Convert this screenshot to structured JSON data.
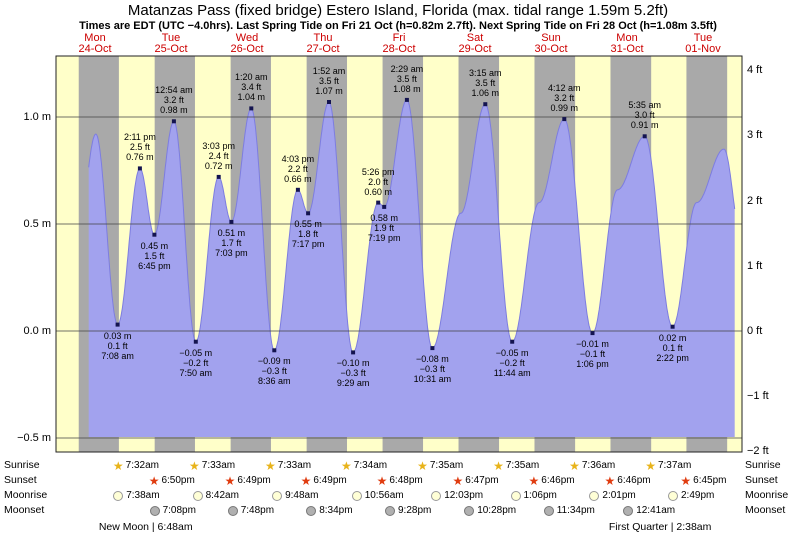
{
  "header": {
    "title": "Matanzas Pass (fixed bridge) Estero Island, Florida (max. tidal range 1.59m 5.2ft)",
    "subtitle": "Times are EDT (UTC −4.0hrs). Last Spring Tide on Fri 21 Oct (h=0.82m 2.7ft). Next Spring Tide on Fri 28 Oct (h=1.08m 3.5ft)"
  },
  "colors": {
    "day_band": "#ffffc9",
    "night_band": "#a9a9a9",
    "tide_fill": "#a2a2ee",
    "tide_stroke": "#7d7de0",
    "day_label": "#cc0000",
    "gridline": "#444444",
    "dot": "#141450",
    "sunrise_star": "#e8b31a",
    "sunset_star": "#e03c10",
    "moonrise_fill": "#ffffd6",
    "moonrise_border": "#999999",
    "moonset_fill": "#b0b0b0",
    "moonset_border": "#777777"
  },
  "days": [
    {
      "name": "Mon",
      "date": "24-Oct",
      "t": 24
    },
    {
      "name": "Tue",
      "date": "25-Oct",
      "t": 48
    },
    {
      "name": "Wed",
      "date": "26-Oct",
      "t": 72
    },
    {
      "name": "Thu",
      "date": "27-Oct",
      "t": 96
    },
    {
      "name": "Fri",
      "date": "28-Oct",
      "t": 120
    },
    {
      "name": "Sat",
      "date": "29-Oct",
      "t": 144
    },
    {
      "name": "Sun",
      "date": "30-Oct",
      "t": 168
    },
    {
      "name": "Mon",
      "date": "31-Oct",
      "t": 192
    },
    {
      "name": "Tue",
      "date": "01-Nov",
      "t": 216
    }
  ],
  "axes": {
    "left": [
      {
        "label": "1.0 m",
        "m": 1.0
      },
      {
        "label": "0.5 m",
        "m": 0.5
      },
      {
        "label": "0.0 m",
        "m": 0.0
      },
      {
        "label": "−0.5 m",
        "m": -0.5
      }
    ],
    "right": [
      {
        "label": "4 ft",
        "ft": 4
      },
      {
        "label": "3 ft",
        "ft": 3
      },
      {
        "label": "2 ft",
        "ft": 2
      },
      {
        "label": "1 ft",
        "ft": 1
      },
      {
        "label": "0 ft",
        "ft": 0
      },
      {
        "label": "−1 ft",
        "ft": -1
      },
      {
        "label": "−2 ft",
        "ft": -2
      }
    ]
  },
  "chart_data": {
    "type": "area",
    "title": "Tide height curve, Matanzas Pass (fixed bridge), Mon 24-Oct to Tue 01-Nov",
    "ylabel_left": "m",
    "ylabel_right": "ft",
    "y_range_m": [
      -0.58,
      1.285
    ],
    "time_axis_hours": [
      11.67,
      228.3
    ],
    "data_start_t": 22.0,
    "data_end_t": 226.0,
    "daylight_spans": [
      [
        11.67,
        18.85
      ],
      [
        31.53,
        42.83
      ],
      [
        55.55,
        66.82
      ],
      [
        79.55,
        90.82
      ],
      [
        103.57,
        114.8
      ],
      [
        127.58,
        138.78
      ],
      [
        151.58,
        162.77
      ],
      [
        175.6,
        186.77
      ],
      [
        199.62,
        210.75
      ],
      [
        223.62,
        228.3
      ]
    ],
    "tide_events": [
      {
        "t": 18.0,
        "h": 0.38,
        "hidden": true
      },
      {
        "t": 24.25,
        "h": 0.92,
        "hidden": true
      },
      {
        "t": 31.13,
        "h": 0.03,
        "type": "low",
        "lines": [
          "0.03 m",
          "0.1 ft",
          "7:08 am"
        ]
      },
      {
        "t": 38.18,
        "h": 0.76,
        "type": "high",
        "lines": [
          "2:11 pm",
          "2.5 ft",
          "0.76 m"
        ]
      },
      {
        "t": 42.75,
        "h": 0.45,
        "type": "low",
        "lines": [
          "0.45 m",
          "1.5 ft",
          "6:45 pm"
        ]
      },
      {
        "t": 48.9,
        "h": 0.98,
        "type": "high",
        "lines": [
          "12:54 am",
          "3.2 ft",
          "0.98 m"
        ]
      },
      {
        "t": 55.83,
        "h": -0.05,
        "type": "low",
        "lines": [
          "−0.05 m",
          "−0.2 ft",
          "7:50 am"
        ]
      },
      {
        "t": 63.05,
        "h": 0.72,
        "type": "high",
        "lines": [
          "3:03 pm",
          "2.4 ft",
          "0.72 m"
        ]
      },
      {
        "t": 67.05,
        "h": 0.51,
        "type": "low",
        "lines": [
          "0.51 m",
          "1.7 ft",
          "7:03 pm"
        ]
      },
      {
        "t": 73.33,
        "h": 1.04,
        "type": "high",
        "lines": [
          "1:20 am",
          "3.4 ft",
          "1.04 m"
        ]
      },
      {
        "t": 80.6,
        "h": -0.09,
        "type": "low",
        "lines": [
          "−0.09 m",
          "−0.3 ft",
          "8:36 am"
        ]
      },
      {
        "t": 88.05,
        "h": 0.66,
        "type": "high",
        "lines": [
          "4:03 pm",
          "2.2 ft",
          "0.66 m"
        ]
      },
      {
        "t": 91.28,
        "h": 0.55,
        "type": "low",
        "lines": [
          "0.55 m",
          "1.8 ft",
          "7:17 pm"
        ]
      },
      {
        "t": 97.87,
        "h": 1.07,
        "type": "high",
        "lines": [
          "1:52 am",
          "3.5 ft",
          "1.07 m"
        ]
      },
      {
        "t": 105.48,
        "h": -0.1,
        "type": "low",
        "lines": [
          "−0.10 m",
          "−0.3 ft",
          "9:29 am"
        ]
      },
      {
        "t": 113.43,
        "h": 0.6,
        "type": "high",
        "lines": [
          "5:26 pm",
          "2.0 ft",
          "0.60 m"
        ]
      },
      {
        "t": 115.32,
        "h": 0.58,
        "type": "low",
        "lines": [
          "0.58 m",
          "1.9 ft",
          "7:19 pm"
        ]
      },
      {
        "t": 122.48,
        "h": 1.08,
        "type": "high",
        "lines": [
          "2:29 am",
          "3.5 ft",
          "1.08 m"
        ]
      },
      {
        "t": 130.52,
        "h": -0.08,
        "type": "low",
        "lines": [
          "−0.08 m",
          "−0.3 ft",
          "10:31 am"
        ]
      },
      {
        "t": 139.5,
        "h": 0.55,
        "hidden": true
      },
      {
        "t": 147.25,
        "h": 1.06,
        "type": "high",
        "lines": [
          "3:15 am",
          "3.5 ft",
          "1.06 m"
        ]
      },
      {
        "t": 155.73,
        "h": -0.05,
        "type": "low",
        "lines": [
          "−0.05 m",
          "−0.2 ft",
          "11:44 am"
        ]
      },
      {
        "t": 164.25,
        "h": 0.6,
        "hidden": true
      },
      {
        "t": 172.2,
        "h": 0.99,
        "type": "high",
        "lines": [
          "4:12 am",
          "3.2 ft",
          "0.99 m"
        ]
      },
      {
        "t": 181.1,
        "h": -0.01,
        "type": "low",
        "lines": [
          "−0.01 m",
          "−0.1 ft",
          "1:06 pm"
        ]
      },
      {
        "t": 189.0,
        "h": 0.66,
        "hidden": true
      },
      {
        "t": 197.58,
        "h": 0.91,
        "type": "high",
        "lines": [
          "5:35 am",
          "3.0 ft",
          "0.91 m"
        ]
      },
      {
        "t": 206.37,
        "h": 0.02,
        "type": "low",
        "lines": [
          "0.02 m",
          "0.1 ft",
          "2:22 pm"
        ]
      },
      {
        "t": 214.0,
        "h": 0.6,
        "hidden": true
      },
      {
        "t": 222.58,
        "h": 0.85,
        "hidden": true
      },
      {
        "t": 228.3,
        "h": 0.42,
        "hidden": true
      }
    ]
  },
  "almanac": {
    "rows": [
      {
        "key": "sunrise",
        "label": "Sunrise",
        "icon": "sunrise-star-icon",
        "entries": [
          {
            "t": 31.53,
            "time": "7:32am"
          },
          {
            "t": 55.55,
            "time": "7:33am"
          },
          {
            "t": 79.55,
            "time": "7:33am"
          },
          {
            "t": 103.57,
            "time": "7:34am"
          },
          {
            "t": 127.58,
            "time": "7:35am"
          },
          {
            "t": 151.58,
            "time": "7:35am"
          },
          {
            "t": 175.6,
            "time": "7:36am"
          },
          {
            "t": 199.62,
            "time": "7:37am"
          }
        ]
      },
      {
        "key": "sunset",
        "label": "Sunset",
        "icon": "sunset-star-icon",
        "entries": [
          {
            "t": 42.83,
            "time": "6:50pm"
          },
          {
            "t": 66.82,
            "time": "6:49pm"
          },
          {
            "t": 90.82,
            "time": "6:49pm"
          },
          {
            "t": 114.8,
            "time": "6:48pm"
          },
          {
            "t": 138.78,
            "time": "6:47pm"
          },
          {
            "t": 162.77,
            "time": "6:46pm"
          },
          {
            "t": 186.77,
            "time": "6:46pm"
          },
          {
            "t": 210.75,
            "time": "6:45pm"
          }
        ]
      },
      {
        "key": "moonrise",
        "label": "Moonrise",
        "icon": "moonrise-circle-icon",
        "entries": [
          {
            "t": 31.63,
            "time": "7:38am"
          },
          {
            "t": 56.7,
            "time": "8:42am"
          },
          {
            "t": 81.8,
            "time": "9:48am"
          },
          {
            "t": 106.93,
            "time": "10:56am"
          },
          {
            "t": 132.05,
            "time": "12:03pm"
          },
          {
            "t": 157.1,
            "time": "1:06pm"
          },
          {
            "t": 182.02,
            "time": "2:01pm"
          },
          {
            "t": 206.82,
            "time": "2:49pm"
          }
        ]
      },
      {
        "key": "moonset",
        "label": "Moonset",
        "icon": "moonset-circle-icon",
        "entries": [
          {
            "t": 43.13,
            "time": "7:08pm"
          },
          {
            "t": 67.8,
            "time": "7:48pm"
          },
          {
            "t": 92.57,
            "time": "8:34pm"
          },
          {
            "t": 117.47,
            "time": "9:28pm"
          },
          {
            "t": 142.47,
            "time": "10:28pm"
          },
          {
            "t": 167.57,
            "time": "11:34pm"
          },
          {
            "t": 192.68,
            "time": "12:41am"
          }
        ]
      }
    ],
    "phases": [
      {
        "label": "New Moon | 6:48am",
        "t": 54.8
      },
      {
        "label": "First Quarter | 2:38am",
        "t": 218.63
      }
    ]
  }
}
